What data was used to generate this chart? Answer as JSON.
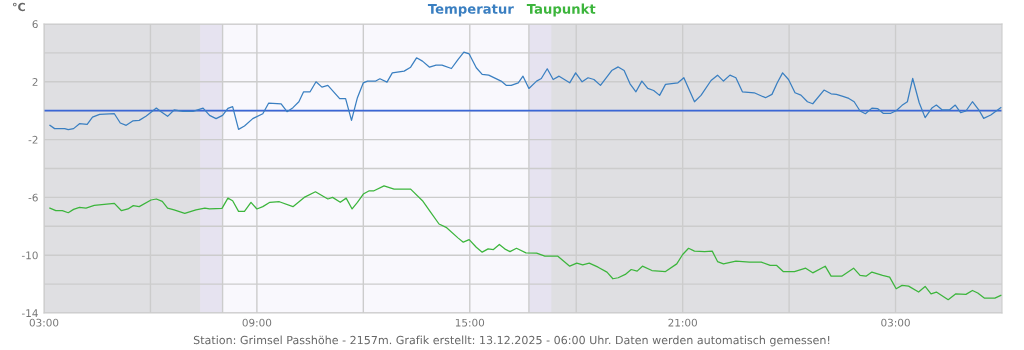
{
  "chart_data": {
    "type": "line",
    "ylabel": "°C",
    "legend": "top",
    "grid": true,
    "xlim": [
      "2025-12-12T03:00",
      "2025-12-13T06:00"
    ],
    "ylim": [
      -14,
      6
    ],
    "xticks": [
      {
        "value": "2025-12-12T03:00",
        "label": "03:00"
      },
      {
        "value": "2025-12-12T06:00",
        "label": null
      },
      {
        "value": "2025-12-12T09:00",
        "label": "09:00"
      },
      {
        "value": "2025-12-12T12:00",
        "label": null
      },
      {
        "value": "2025-12-12T15:00",
        "label": "15:00"
      },
      {
        "value": "2025-12-12T18:00",
        "label": null
      },
      {
        "value": "2025-12-12T21:00",
        "label": "21:00"
      },
      {
        "value": "2025-12-13T00:00",
        "label": null
      },
      {
        "value": "2025-12-13T03:00",
        "label": "03:00"
      }
    ],
    "yticks": [
      6,
      {
        "value": 4,
        "label": null
      },
      2,
      {
        "value": 0,
        "label": null
      },
      -2,
      {
        "value": -4,
        "label": null
      },
      -6,
      {
        "value": -8,
        "label": null
      },
      -10,
      {
        "value": -12,
        "label": null
      },
      -14
    ],
    "bands": [
      {
        "axis": "x",
        "from": "2025-12-12T07:24",
        "to": "2025-12-12T08:02",
        "color": "#e6e3f0"
      },
      {
        "axis": "x",
        "from": "2025-12-12T08:02",
        "to": "2025-12-12T16:40",
        "color": "#f9f8fd"
      },
      {
        "axis": "x",
        "from": "2025-12-12T16:40",
        "to": "2025-12-12T17:18",
        "color": "#e6e3f0"
      }
    ],
    "ref_lines": [
      {
        "axis": "y",
        "value": 0,
        "color": "#3a66d6"
      },
      {
        "axis": "x",
        "value": "2025-12-12T08:02",
        "color": "#cccccc"
      },
      {
        "axis": "x",
        "value": "2025-12-12T16:40",
        "color": "#cccccc"
      }
    ],
    "annotations": [
      "Station: Grimsel Passhöhe - 2157m. Grafik erstellt: 13.12.2025 - 06:00 Uhr. Daten werden automatisch gemessen!"
    ],
    "series": [
      {
        "name": "Temperatur",
        "color": "#3a7fc1",
        "x": [
          "2025-12-12T03:10",
          "2025-12-12T03:18",
          "2025-12-12T03:35",
          "2025-12-12T03:41",
          "2025-12-12T03:50",
          "2025-12-12T04:00",
          "2025-12-12T04:13",
          "2025-12-12T04:22",
          "2025-12-12T04:34",
          "2025-12-12T04:59",
          "2025-12-12T05:09",
          "2025-12-12T05:19",
          "2025-12-12T05:30",
          "2025-12-12T05:41",
          "2025-12-12T05:53",
          "2025-12-12T06:10",
          "2025-12-12T06:18",
          "2025-12-12T06:29",
          "2025-12-12T06:40",
          "2025-12-12T06:55",
          "2025-12-12T07:12",
          "2025-12-12T07:29",
          "2025-12-12T07:40",
          "2025-12-12T07:51",
          "2025-12-12T08:02",
          "2025-12-12T08:11",
          "2025-12-12T08:19",
          "2025-12-12T08:29",
          "2025-12-12T08:39",
          "2025-12-12T08:53",
          "2025-12-12T09:10",
          "2025-12-12T09:20",
          "2025-12-12T09:41",
          "2025-12-12T09:51",
          "2025-12-12T10:01",
          "2025-12-12T10:11",
          "2025-12-12T10:19",
          "2025-12-12T10:30",
          "2025-12-12T10:40",
          "2025-12-12T10:50",
          "2025-12-12T11:00",
          "2025-12-12T11:20",
          "2025-12-12T11:30",
          "2025-12-12T11:40",
          "2025-12-12T11:50",
          "2025-12-12T12:00",
          "2025-12-12T12:07",
          "2025-12-12T12:21",
          "2025-12-12T12:28",
          "2025-12-12T12:40",
          "2025-12-12T12:49",
          "2025-12-12T13:09",
          "2025-12-12T13:20",
          "2025-12-12T13:30",
          "2025-12-12T13:40",
          "2025-12-12T13:52",
          "2025-12-12T14:03",
          "2025-12-12T14:13",
          "2025-12-12T14:29",
          "2025-12-12T14:40",
          "2025-12-12T14:50",
          "2025-12-12T14:59",
          "2025-12-12T15:11",
          "2025-12-12T15:21",
          "2025-12-12T15:32",
          "2025-12-12T15:53",
          "2025-12-12T16:02",
          "2025-12-12T16:10",
          "2025-12-12T16:22",
          "2025-12-12T16:30",
          "2025-12-12T16:40",
          "2025-12-12T16:53",
          "2025-12-12T17:01",
          "2025-12-12T17:11",
          "2025-12-12T17:21",
          "2025-12-12T17:31",
          "2025-12-12T17:49",
          "2025-12-12T17:59",
          "2025-12-12T18:10",
          "2025-12-12T18:20",
          "2025-12-12T18:30",
          "2025-12-12T18:41",
          "2025-12-12T19:00",
          "2025-12-12T19:11",
          "2025-12-12T19:21",
          "2025-12-12T19:31",
          "2025-12-12T19:41",
          "2025-12-12T19:51",
          "2025-12-12T20:01",
          "2025-12-12T20:11",
          "2025-12-12T20:21",
          "2025-12-12T20:31",
          "2025-12-12T20:52",
          "2025-12-12T21:02",
          "2025-12-12T21:20",
          "2025-12-12T21:31",
          "2025-12-12T21:48",
          "2025-12-12T21:59",
          "2025-12-12T22:09",
          "2025-12-12T22:20",
          "2025-12-12T22:30",
          "2025-12-12T22:41",
          "2025-12-12T23:01",
          "2025-12-12T23:20",
          "2025-12-12T23:31",
          "2025-12-12T23:40",
          "2025-12-12T23:49",
          "2025-12-12T23:59",
          "2025-12-13T00:10",
          "2025-12-13T00:20",
          "2025-12-13T00:31",
          "2025-12-13T00:40",
          "2025-12-13T00:59",
          "2025-12-13T01:11",
          "2025-12-13T01:20",
          "2025-12-13T01:31",
          "2025-12-13T01:41",
          "2025-12-13T01:50",
          "2025-12-13T02:00",
          "2025-12-13T02:09",
          "2025-12-13T02:20",
          "2025-12-13T02:30",
          "2025-12-13T02:39",
          "2025-12-13T02:52",
          "2025-12-13T03:01",
          "2025-12-13T03:11",
          "2025-12-13T03:20",
          "2025-12-13T03:29",
          "2025-12-13T03:40",
          "2025-12-13T03:50",
          "2025-12-13T04:02",
          "2025-12-13T04:09",
          "2025-12-13T04:19",
          "2025-12-13T04:31",
          "2025-12-13T04:41",
          "2025-12-13T04:50",
          "2025-12-13T04:59",
          "2025-12-13T05:10",
          "2025-12-13T05:22",
          "2025-12-13T05:29",
          "2025-12-13T05:41",
          "2025-12-13T05:58"
        ],
        "values": [
          -1.01,
          -1.24,
          -1.24,
          -1.31,
          -1.24,
          -0.9,
          -0.94,
          -0.44,
          -0.25,
          -0.21,
          -0.85,
          -1.01,
          -0.71,
          -0.67,
          -0.37,
          0.18,
          -0.07,
          -0.39,
          0.05,
          -0.05,
          -0.05,
          0.18,
          -0.32,
          -0.55,
          -0.32,
          0.16,
          0.28,
          -1.29,
          -1.06,
          -0.55,
          -0.21,
          0.53,
          0.48,
          -0.07,
          0.21,
          0.62,
          1.31,
          1.31,
          2.0,
          1.63,
          1.75,
          0.83,
          0.83,
          -0.67,
          0.9,
          1.93,
          2.05,
          2.05,
          2.21,
          1.98,
          2.62,
          2.74,
          3.01,
          3.66,
          3.43,
          3.01,
          3.15,
          3.15,
          2.92,
          3.54,
          4.05,
          3.93,
          2.97,
          2.51,
          2.46,
          2.05,
          1.75,
          1.75,
          1.93,
          2.39,
          1.54,
          2.05,
          2.23,
          2.9,
          2.16,
          2.39,
          1.93,
          2.62,
          2.0,
          2.28,
          2.16,
          1.75,
          2.78,
          3.03,
          2.78,
          1.86,
          1.31,
          2.05,
          1.54,
          1.4,
          1.06,
          1.82,
          1.93,
          2.28,
          0.62,
          1.06,
          2.09,
          2.46,
          2.05,
          2.46,
          2.28,
          1.31,
          1.24,
          0.9,
          1.13,
          1.93,
          2.62,
          2.16,
          1.24,
          1.08,
          0.62,
          0.48,
          1.43,
          1.17,
          1.13,
          0.99,
          0.85,
          0.62,
          -0.02,
          -0.21,
          0.18,
          0.14,
          -0.18,
          -0.18,
          0.0,
          0.37,
          0.62,
          2.23,
          0.55,
          -0.48,
          0.21,
          0.39,
          0.05,
          0.05,
          0.39,
          -0.14,
          -0.02,
          0.62,
          -0.02,
          -0.53,
          -0.3,
          0.21
        ]
      },
      {
        "name": "Taupunkt",
        "color": "#3cb53c",
        "x": [
          "2025-12-12T03:10",
          "2025-12-12T03:20",
          "2025-12-12T03:31",
          "2025-12-12T03:41",
          "2025-12-12T03:50",
          "2025-12-12T04:00",
          "2025-12-12T04:11",
          "2025-12-12T04:25",
          "2025-12-12T04:46",
          "2025-12-12T04:59",
          "2025-12-12T05:11",
          "2025-12-12T05:22",
          "2025-12-12T05:31",
          "2025-12-12T05:41",
          "2025-12-12T06:01",
          "2025-12-12T06:10",
          "2025-12-12T06:20",
          "2025-12-12T06:29",
          "2025-12-12T06:40",
          "2025-12-12T06:58",
          "2025-12-12T07:17",
          "2025-12-12T07:32",
          "2025-12-12T07:40",
          "2025-12-12T08:01",
          "2025-12-12T08:11",
          "2025-12-12T08:19",
          "2025-12-12T08:29",
          "2025-12-12T08:39",
          "2025-12-12T08:50",
          "2025-12-12T09:00",
          "2025-12-12T09:10",
          "2025-12-12T09:22",
          "2025-12-12T09:38",
          "2025-12-12T10:01",
          "2025-12-12T10:20",
          "2025-12-12T10:39",
          "2025-12-12T11:00",
          "2025-12-12T11:08",
          "2025-12-12T11:21",
          "2025-12-12T11:31",
          "2025-12-12T11:41",
          "2025-12-12T11:50",
          "2025-12-12T12:00",
          "2025-12-12T12:10",
          "2025-12-12T12:18",
          "2025-12-12T12:35",
          "2025-12-12T12:52",
          "2025-12-12T13:20",
          "2025-12-12T13:40",
          "2025-12-12T13:54",
          "2025-12-12T14:08",
          "2025-12-12T14:20",
          "2025-12-12T14:40",
          "2025-12-12T14:49",
          "2025-12-12T14:59",
          "2025-12-12T15:11",
          "2025-12-12T15:21",
          "2025-12-12T15:31",
          "2025-12-12T15:40",
          "2025-12-12T15:50",
          "2025-12-12T15:59",
          "2025-12-12T16:08",
          "2025-12-12T16:19",
          "2025-12-12T16:35",
          "2025-12-12T16:53",
          "2025-12-12T17:07",
          "2025-12-12T17:29",
          "2025-12-12T17:49",
          "2025-12-12T18:01",
          "2025-12-12T18:11",
          "2025-12-12T18:22",
          "2025-12-12T18:37",
          "2025-12-12T18:52",
          "2025-12-12T19:02",
          "2025-12-12T19:11",
          "2025-12-12T19:23",
          "2025-12-12T19:33",
          "2025-12-12T19:43",
          "2025-12-12T19:52",
          "2025-12-12T20:08",
          "2025-12-12T20:31",
          "2025-12-12T20:50",
          "2025-12-12T21:00",
          "2025-12-12T21:10",
          "2025-12-12T21:20",
          "2025-12-12T21:37",
          "2025-12-12T21:50",
          "2025-12-12T21:59",
          "2025-12-12T22:09",
          "2025-12-12T22:30",
          "2025-12-12T22:53",
          "2025-12-12T23:13",
          "2025-12-12T23:28",
          "2025-12-12T23:39",
          "2025-12-12T23:50",
          "2025-12-13T00:09",
          "2025-12-13T00:28",
          "2025-12-13T00:40",
          "2025-12-13T01:01",
          "2025-12-13T01:11",
          "2025-12-13T01:29",
          "2025-12-13T01:49",
          "2025-12-13T02:00",
          "2025-12-13T02:10",
          "2025-12-13T02:20",
          "2025-12-13T02:38",
          "2025-12-13T02:50",
          "2025-12-13T03:01",
          "2025-12-13T03:11",
          "2025-12-13T03:22",
          "2025-12-13T03:39",
          "2025-12-13T03:50",
          "2025-12-13T04:00",
          "2025-12-13T04:09",
          "2025-12-13T04:29",
          "2025-12-13T04:42",
          "2025-12-13T04:59",
          "2025-12-13T05:10",
          "2025-12-13T05:19",
          "2025-12-13T05:30",
          "2025-12-13T05:48",
          "2025-12-13T05:58"
        ],
        "values": [
          -6.74,
          -6.92,
          -6.92,
          -7.06,
          -6.83,
          -6.69,
          -6.74,
          -6.55,
          -6.46,
          -6.41,
          -6.92,
          -6.8,
          -6.57,
          -6.64,
          -6.18,
          -6.11,
          -6.28,
          -6.74,
          -6.87,
          -7.1,
          -6.87,
          -6.74,
          -6.8,
          -6.76,
          -6.05,
          -6.23,
          -6.97,
          -6.97,
          -6.34,
          -6.8,
          -6.64,
          -6.34,
          -6.3,
          -6.64,
          -6.0,
          -5.61,
          -6.11,
          -6.0,
          -6.34,
          -6.05,
          -6.8,
          -6.34,
          -5.77,
          -5.54,
          -5.54,
          -5.2,
          -5.43,
          -5.43,
          -6.23,
          -7.03,
          -7.84,
          -8.07,
          -8.8,
          -9.1,
          -8.92,
          -9.45,
          -9.79,
          -9.56,
          -9.61,
          -9.26,
          -9.56,
          -9.75,
          -9.52,
          -9.84,
          -9.86,
          -10.07,
          -10.07,
          -10.76,
          -10.55,
          -10.67,
          -10.55,
          -10.83,
          -11.17,
          -11.63,
          -11.56,
          -11.33,
          -10.99,
          -11.1,
          -10.76,
          -11.06,
          -11.13,
          -10.6,
          -9.95,
          -9.52,
          -9.72,
          -9.75,
          -9.72,
          -10.44,
          -10.6,
          -10.41,
          -10.48,
          -10.48,
          -10.71,
          -10.71,
          -11.13,
          -11.13,
          -10.9,
          -11.22,
          -10.76,
          -11.45,
          -11.45,
          -10.9,
          -11.4,
          -11.45,
          -11.17,
          -11.4,
          -11.52,
          -12.32,
          -12.09,
          -12.14,
          -12.55,
          -12.16,
          -12.67,
          -12.55,
          -13.08,
          -12.67,
          -12.71,
          -12.44,
          -12.62,
          -12.97,
          -12.97,
          -12.78
        ]
      }
    ]
  }
}
